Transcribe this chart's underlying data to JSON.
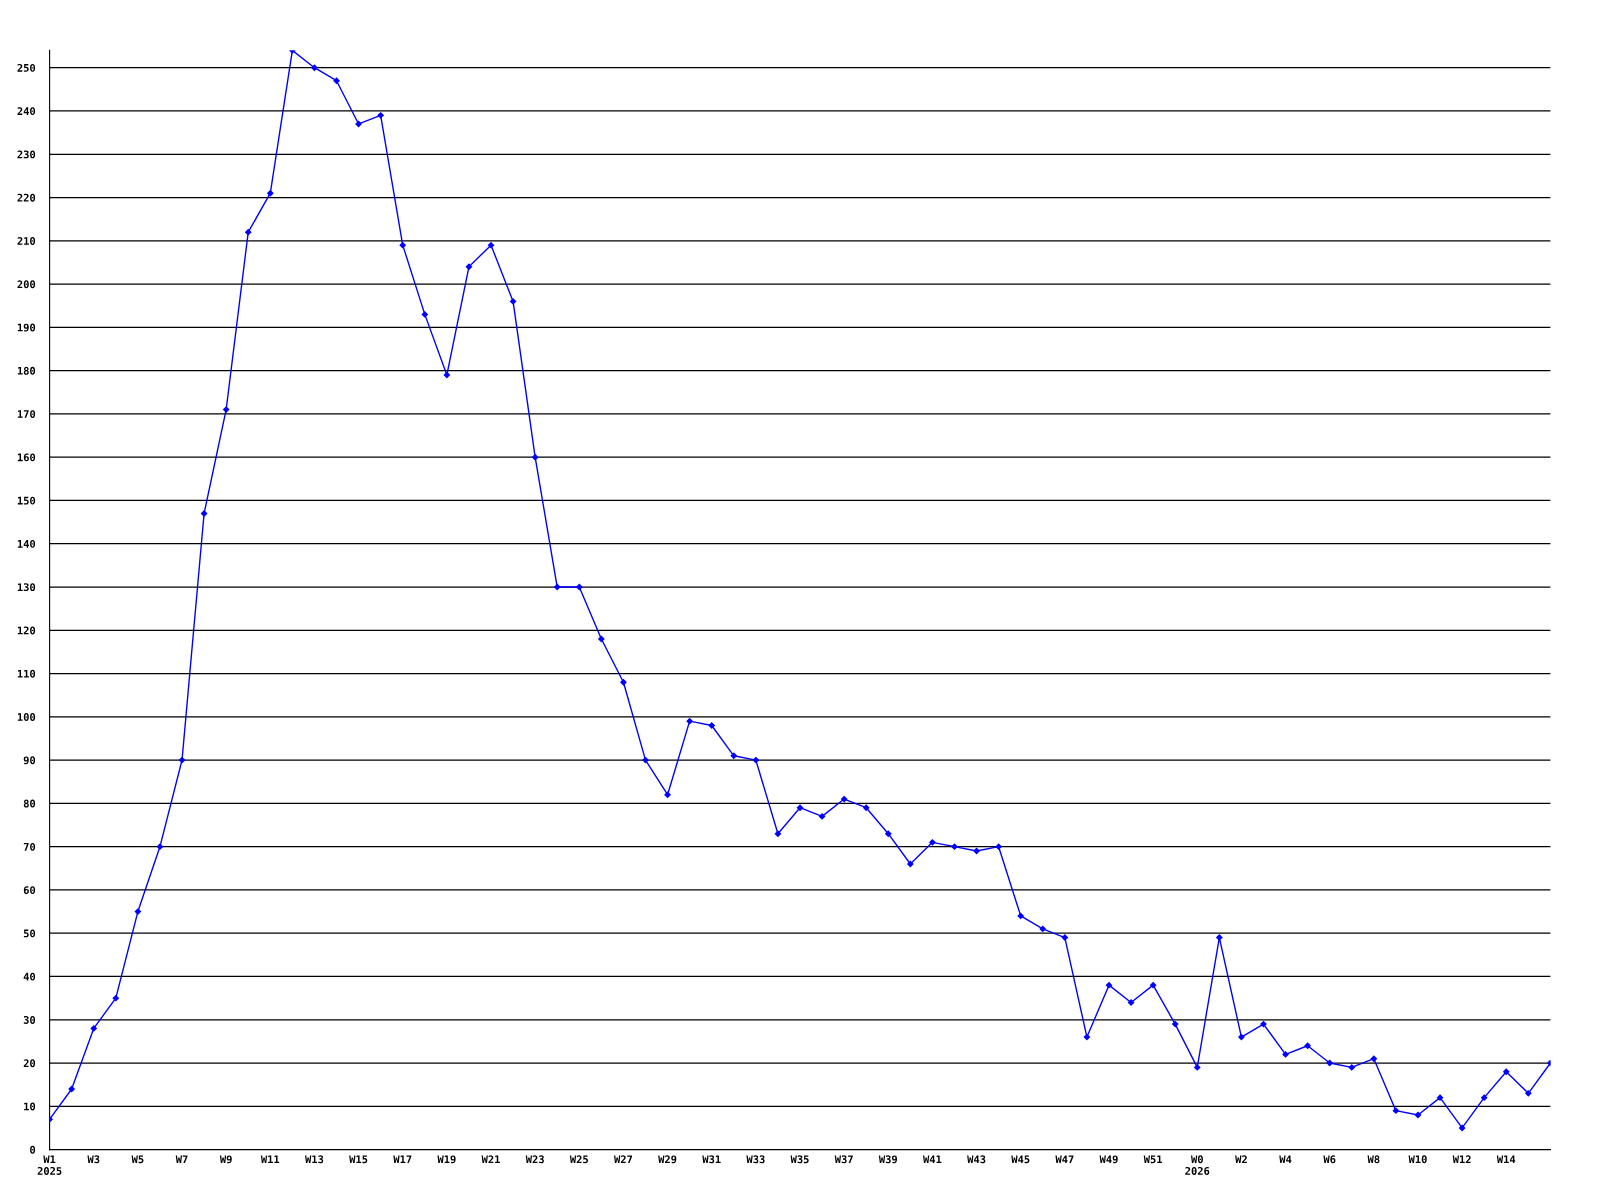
{
  "chart_data": {
    "type": "line",
    "categories": [
      "W1\n2025",
      null,
      "W3",
      null,
      "W5",
      null,
      "W7",
      null,
      "W9",
      null,
      "W11",
      null,
      "W13",
      null,
      "W15",
      null,
      "W17",
      null,
      "W19",
      null,
      "W21",
      null,
      "W23",
      null,
      "W25",
      null,
      "W27",
      null,
      "W29",
      null,
      "W31",
      null,
      "W33",
      null,
      "W35",
      null,
      "W37",
      null,
      "W39",
      null,
      "W41",
      null,
      "W43",
      null,
      "W45",
      null,
      "W47",
      null,
      "W49",
      null,
      "W51",
      null,
      "W0\n2026",
      null,
      "W2",
      null,
      "W4",
      null,
      "W6",
      null,
      "W8",
      null,
      "W10",
      null,
      "W12",
      null,
      "W14",
      null,
      null
    ],
    "series": [
      {
        "color": "#0000ff",
        "values": [
          7,
          14,
          28,
          35,
          55,
          70,
          90,
          147,
          171,
          212,
          221,
          254,
          250,
          247,
          237,
          239,
          209,
          193,
          179,
          204,
          209,
          196,
          160,
          130,
          130,
          118,
          108,
          90,
          82,
          99,
          98,
          91,
          90,
          73,
          79,
          77,
          81,
          79,
          73,
          66,
          71,
          70,
          69,
          70,
          54,
          51,
          49,
          26,
          38,
          34,
          38,
          29,
          19,
          49,
          26,
          29,
          22,
          24,
          20,
          19,
          21,
          9,
          8,
          12,
          5,
          12,
          18,
          13,
          20
        ]
      }
    ],
    "ylim": [
      0,
      254
    ],
    "yticks": [
      0,
      10,
      20,
      30,
      40,
      50,
      60,
      70,
      80,
      90,
      100,
      110,
      120,
      130,
      140,
      150,
      160,
      170,
      180,
      190,
      200,
      210,
      220,
      230,
      240,
      250
    ],
    "grid": "y",
    "marker": "diamond",
    "line_style": "solid"
  }
}
